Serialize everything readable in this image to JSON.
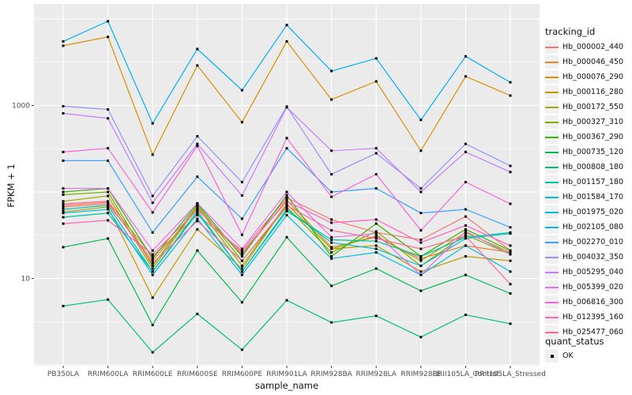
{
  "figure": {
    "background": "#FFFFFF",
    "panel_background": "#EBEBEB",
    "gridline_color": "#FFFFFF",
    "tick_label_color": "#4D4D4D",
    "tick_mark_color": "#333333",
    "legend_key_background": "#F0F0F0",
    "point_color": "#000000"
  },
  "chart_data": {
    "type": "line",
    "title": "",
    "xlabel": "sample_name",
    "ylabel": "FPKM + 1",
    "y_scale": "log10",
    "ylim": [
      1,
      15000
    ],
    "grid": true,
    "legend_position": "right",
    "y_axis_ticks": [
      {
        "value": 1000,
        "label": "1000"
      },
      {
        "value": 10,
        "label": "10"
      }
    ],
    "y_major_gridlines": [
      1,
      10,
      100,
      1000,
      10000
    ],
    "y_minor_gridlines": [
      3.162,
      31.62,
      316.2,
      3162
    ],
    "categories": [
      "PB350LA",
      "RRIM600LA",
      "RRIM600LE",
      "RRIM600SE",
      "RRIM600PE",
      "RRIM901LA",
      "RRIM928BA",
      "RRIM928LA",
      "RRIM928LE",
      "RRII105LA_Control",
      "RRII105LA_Stressed"
    ],
    "point_marker": {
      "shape": "square",
      "size": 3,
      "color": "#000000"
    },
    "legend": {
      "tracking_title": "tracking_id",
      "quant_title": "quant_status",
      "quant_items": [
        {
          "label": "OK",
          "marker": "square",
          "color": "#000000"
        }
      ]
    },
    "series": [
      {
        "name": "Hb_000002_440",
        "color": "#F8766D",
        "values": [
          73,
          78,
          18,
          54,
          21,
          86,
          48,
          34,
          28,
          52,
          21
        ]
      },
      {
        "name": "Hb_000046_450",
        "color": "#EA8331",
        "values": [
          67,
          73,
          16,
          63,
          19,
          81,
          23,
          30,
          17,
          24,
          20
        ]
      },
      {
        "name": "Hb_000076_290",
        "color": "#D89000",
        "values": [
          4900,
          6200,
          270,
          2900,
          640,
          5500,
          1170,
          1900,
          300,
          2170,
          1300
        ]
      },
      {
        "name": "Hb_000116_280",
        "color": "#C09B00",
        "values": [
          59,
          67,
          6.0,
          37,
          13,
          73,
          22,
          24,
          12,
          18,
          16
        ]
      },
      {
        "name": "Hb_000172_550",
        "color": "#A3A500",
        "values": [
          78,
          90,
          13,
          67,
          14,
          73,
          22,
          31,
          16,
          34,
          20
        ]
      },
      {
        "name": "Hb_000327_310",
        "color": "#7CAE00",
        "values": [
          93,
          100,
          14,
          70,
          16,
          67,
          20,
          35,
          14,
          32,
          19
        ]
      },
      {
        "name": "Hb_000367_290",
        "color": "#39B600",
        "values": [
          100,
          110,
          17,
          73,
          18,
          92,
          18,
          43,
          18,
          37,
          21
        ]
      },
      {
        "name": "Hb_000735_120",
        "color": "#00BB4E",
        "values": [
          23,
          29,
          2.9,
          21,
          5.3,
          30,
          8.2,
          13,
          7.2,
          11,
          6.7
        ]
      },
      {
        "name": "Hb_000808_180",
        "color": "#00BF7D",
        "values": [
          4.8,
          5.7,
          1.4,
          3.9,
          1.5,
          5.6,
          3.1,
          3.7,
          2.1,
          3.8,
          3.0
        ]
      },
      {
        "name": "Hb_001157_180",
        "color": "#00C1A3",
        "values": [
          51,
          57,
          12,
          60,
          12,
          60,
          28,
          27,
          18,
          30,
          34
        ]
      },
      {
        "name": "Hb_001584_170",
        "color": "#00BFC4",
        "values": [
          63,
          70,
          12,
          57,
          12,
          63,
          26,
          22,
          14,
          29,
          33
        ]
      },
      {
        "name": "Hb_001975_020",
        "color": "#00BAE0",
        "values": [
          57,
          63,
          11,
          49,
          11,
          54,
          17,
          20,
          11,
          24,
          12
        ]
      },
      {
        "name": "Hb_002105_080",
        "color": "#00B0F6",
        "values": [
          5500,
          9400,
          620,
          4500,
          1500,
          8500,
          2500,
          3500,
          680,
          3700,
          1850
        ]
      },
      {
        "name": "Hb_002270_010",
        "color": "#35A2FF",
        "values": [
          230,
          230,
          34,
          150,
          49,
          320,
          100,
          110,
          57,
          63,
          39
        ]
      },
      {
        "name": "Hb_004032_350",
        "color": "#9590FF",
        "values": [
          980,
          900,
          90,
          440,
          130,
          970,
          160,
          280,
          110,
          360,
          200
        ]
      },
      {
        "name": "Hb_005295_040",
        "color": "#C77CFF",
        "values": [
          810,
          710,
          75,
          360,
          91,
          950,
          300,
          320,
          100,
          290,
          170
        ]
      },
      {
        "name": "Hb_005399_020",
        "color": "#E76BF3",
        "values": [
          110,
          110,
          21,
          74,
          22,
          100,
          30,
          33,
          11,
          35,
          19
        ]
      },
      {
        "name": "Hb_006816_300",
        "color": "#FA62DB",
        "values": [
          290,
          320,
          58,
          340,
          32,
          420,
          88,
          160,
          36,
          130,
          73
        ]
      },
      {
        "name": "Hb_012395_160",
        "color": "#FF62BC",
        "values": [
          43,
          47,
          19,
          62,
          20,
          78,
          44,
          48,
          26,
          41,
          24
        ]
      },
      {
        "name": "Hb_025477_060",
        "color": "#FF6A98",
        "values": [
          70,
          76,
          15,
          46,
          16,
          70,
          36,
          29,
          22,
          31,
          8.6
        ]
      }
    ]
  }
}
